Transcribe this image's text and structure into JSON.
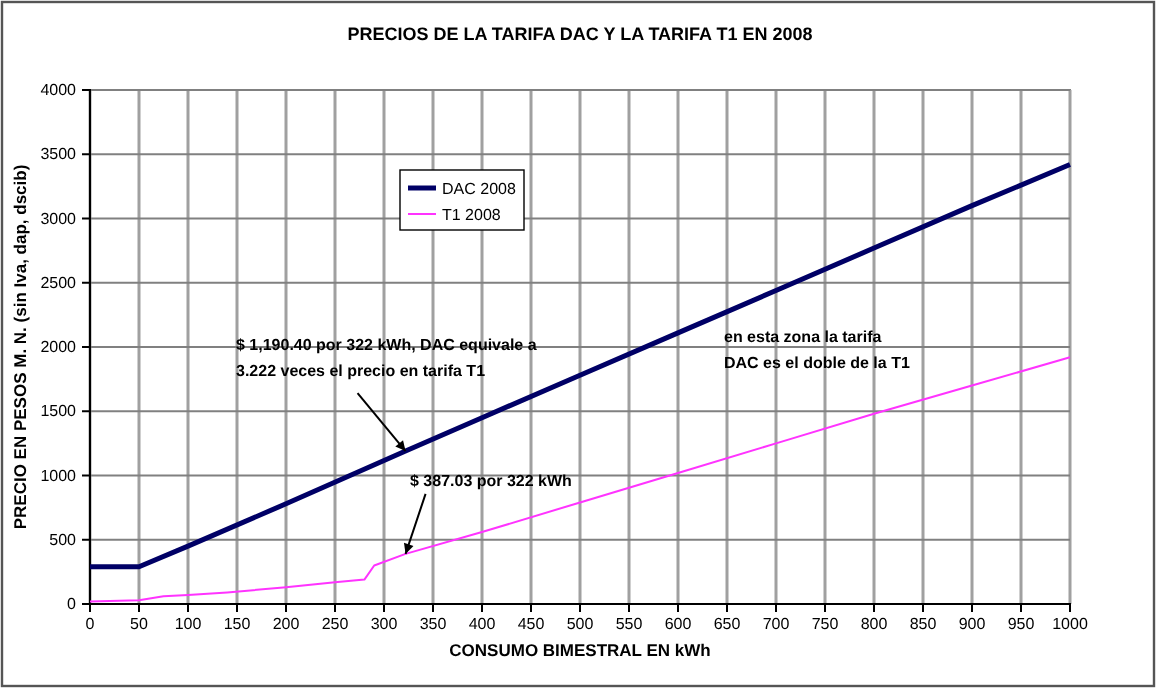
{
  "chart_data": {
    "type": "line",
    "title": "PRECIOS DE LA TARIFA DAC Y LA TARIFA T1 EN 2008",
    "xlabel": "CONSUMO BIMESTRAL EN kWh",
    "ylabel": "PRECIO EN PESOS M. N. (sin Iva, dap, dscib)",
    "series": [
      {
        "name": "DAC 2008",
        "color": "#000066",
        "x": [
          0,
          50,
          100,
          200,
          322,
          400,
          500,
          600,
          700,
          800,
          900,
          1000
        ],
        "values": [
          290,
          290,
          450,
          780,
          1190,
          1450,
          1780,
          2110,
          2440,
          2770,
          3100,
          3420
        ]
      },
      {
        "name": "T1 2008",
        "color": "#ff33ff",
        "x": [
          0,
          50,
          75,
          100,
          140,
          200,
          250,
          280,
          290,
          322,
          400,
          500,
          600,
          700,
          800,
          900,
          1000
        ],
        "values": [
          20,
          30,
          60,
          70,
          90,
          130,
          170,
          190,
          300,
          390,
          560,
          790,
          1020,
          1250,
          1480,
          1700,
          1920
        ]
      }
    ],
    "xlim": [
      0,
      1000
    ],
    "xticks": [
      0,
      50,
      100,
      150,
      200,
      250,
      300,
      350,
      400,
      450,
      500,
      550,
      600,
      650,
      700,
      750,
      800,
      850,
      900,
      950,
      1000
    ],
    "ylim": [
      0,
      4000
    ],
    "yticks": [
      0,
      500,
      1000,
      1500,
      2000,
      2500,
      3000,
      3500,
      4000
    ],
    "grid": true,
    "legend": "top left",
    "marker": "none",
    "line_style": "solid",
    "annotations": [
      {
        "text": "$ 1,190.40 por 322 kWh, DAC equivale a\n3.222 veces el precio en tarifa T1",
        "x": 322,
        "y": 1190
      },
      {
        "text": "$ 387.03 por 322 kWh",
        "x": 322,
        "y": 390
      },
      "en esta zona la tarifa\nDAC es el doble de la T1"
    ]
  }
}
